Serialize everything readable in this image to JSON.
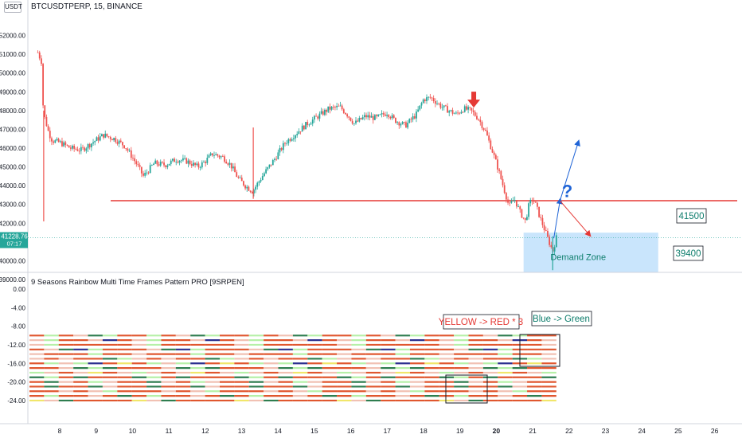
{
  "header": {
    "symbol": "BTCUSDTPERP, 15, BINANCE",
    "unit_badge": "USDT"
  },
  "price_badge": {
    "price": "41228.76",
    "countdown": "07:17",
    "color": "#26a69a"
  },
  "indicator": {
    "title": "9 Seasons Rainbow Multi Time Frames Pattern PRO [9SRPEN]"
  },
  "annotations": {
    "zone_top": "41500",
    "zone_bottom": "39400",
    "demand_zone": "Demand Zone",
    "question_mark": "?",
    "yellow_red": "YELLOW -> RED * 3",
    "blue_green": "Blue -> Green"
  },
  "colors": {
    "up": "#26a69a",
    "down": "#ef5350",
    "resistance": "#e53935",
    "zone": "#bbdefb",
    "blue_arrow": "#1e63d6",
    "red_arrow": "#e53935"
  },
  "chart_data": [
    {
      "type": "candlestick",
      "title": "BTCUSDTPERP, 15, BINANCE",
      "yticks": [
        "52000.00",
        "51000.00",
        "50000.00",
        "49000.00",
        "48000.00",
        "47000.00",
        "46000.00",
        "45000.00",
        "44000.00",
        "43000.00",
        "42000.00",
        "41000.00",
        "40000.00",
        "39000.00"
      ],
      "ylim": [
        38700,
        52300
      ],
      "xticks": [
        "8",
        "9",
        "10",
        "11",
        "12",
        "13",
        "14",
        "15",
        "16",
        "17",
        "18",
        "19",
        "20",
        "21",
        "22",
        "23",
        "24",
        "25",
        "26"
      ],
      "xlim": [
        7.35,
        26.6
      ],
      "close_path": [
        [
          7.4,
          51100
        ],
        [
          7.5,
          50600
        ],
        [
          7.55,
          47900
        ],
        [
          7.7,
          46800
        ],
        [
          7.8,
          46400
        ],
        [
          8.0,
          46300
        ],
        [
          8.3,
          46000
        ],
        [
          8.6,
          45900
        ],
        [
          8.9,
          46300
        ],
        [
          9.2,
          46700
        ],
        [
          9.5,
          46500
        ],
        [
          9.8,
          46100
        ],
        [
          10.1,
          45200
        ],
        [
          10.3,
          44500
        ],
        [
          10.6,
          45200
        ],
        [
          10.9,
          45100
        ],
        [
          11.2,
          45400
        ],
        [
          11.5,
          45300
        ],
        [
          11.8,
          45000
        ],
        [
          12.0,
          45300
        ],
        [
          12.2,
          45700
        ],
        [
          12.5,
          45500
        ],
        [
          12.7,
          45100
        ],
        [
          12.9,
          44400
        ],
        [
          13.1,
          44000
        ],
        [
          13.3,
          43700
        ],
        [
          13.6,
          44600
        ],
        [
          13.9,
          45400
        ],
        [
          14.2,
          46300
        ],
        [
          14.5,
          46800
        ],
        [
          14.8,
          47300
        ],
        [
          15.1,
          47700
        ],
        [
          15.4,
          48100
        ],
        [
          15.7,
          48200
        ],
        [
          15.9,
          47800
        ],
        [
          16.1,
          47300
        ],
        [
          16.4,
          47700
        ],
        [
          16.7,
          47600
        ],
        [
          17.0,
          47900
        ],
        [
          17.2,
          47500
        ],
        [
          17.5,
          47200
        ],
        [
          17.8,
          47800
        ],
        [
          18.0,
          48600
        ],
        [
          18.2,
          48700
        ],
        [
          18.5,
          48200
        ],
        [
          18.7,
          48000
        ],
        [
          18.9,
          47800
        ],
        [
          19.1,
          48100
        ],
        [
          19.3,
          48000
        ],
        [
          19.5,
          47600
        ],
        [
          19.7,
          46900
        ],
        [
          19.9,
          45800
        ],
        [
          20.05,
          44900
        ],
        [
          20.2,
          43900
        ],
        [
          20.35,
          42900
        ],
        [
          20.5,
          43300
        ],
        [
          20.65,
          42600
        ],
        [
          20.8,
          42100
        ],
        [
          20.9,
          43000
        ],
        [
          21.0,
          43300
        ],
        [
          21.1,
          42900
        ],
        [
          21.2,
          42300
        ],
        [
          21.3,
          41800
        ],
        [
          21.45,
          41000
        ],
        [
          21.55,
          40500
        ],
        [
          21.65,
          41228.76
        ]
      ],
      "resistance": 43200,
      "demand_zone": [
        39400,
        41500
      ],
      "current_price": 41228.76
    },
    {
      "type": "heatmap",
      "title": "9 Seasons Rainbow Multi Time Frames Pattern PRO [9SRPEN]",
      "yticks": [
        "0.00",
        "-4.00",
        "-8.00",
        "-12.00",
        "-16.00",
        "-20.00",
        "-24.00"
      ],
      "ylim": [
        -25,
        1
      ],
      "levels": [
        -10,
        -11,
        -12,
        -13,
        -14,
        -15,
        -16,
        -17,
        -18,
        -19,
        -20,
        -21,
        -22,
        -23,
        -24
      ]
    }
  ]
}
